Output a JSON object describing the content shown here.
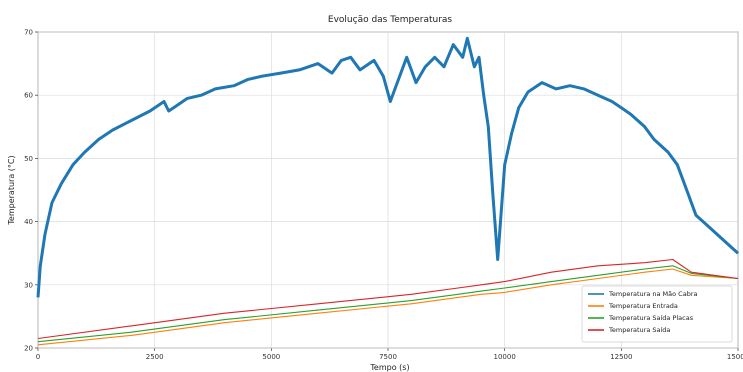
{
  "chart_data": {
    "type": "line",
    "title": "Evolução das Temperaturas",
    "xlabel": "Tempo (s)",
    "ylabel": "Temperatura (°C)",
    "xlim": [
      0,
      15000
    ],
    "ylim": [
      20,
      70
    ],
    "xticks": [
      0,
      2500,
      5000,
      7500,
      10000,
      12500,
      15000
    ],
    "yticks": [
      20,
      30,
      40,
      50,
      60,
      70
    ],
    "grid": true,
    "legend_position": "bottom-right",
    "series": [
      {
        "name": "Temperatura na Mão Cabra",
        "color": "#1f77b4",
        "x": [
          0,
          50,
          150,
          300,
          500,
          750,
          1000,
          1300,
          1600,
          2000,
          2400,
          2600,
          2700,
          2800,
          3000,
          3200,
          3500,
          3800,
          4200,
          4500,
          4800,
          5200,
          5600,
          6000,
          6300,
          6500,
          6700,
          6900,
          7200,
          7400,
          7550,
          7700,
          7900,
          8100,
          8300,
          8500,
          8700,
          8900,
          9100,
          9200,
          9350,
          9450,
          9550,
          9650,
          9750,
          9850,
          10000,
          10150,
          10300,
          10500,
          10800,
          11100,
          11400,
          11700,
          12000,
          12300,
          12500,
          12700,
          13000,
          13200,
          13500,
          13700,
          13900,
          14100,
          14400,
          14700,
          15000
        ],
        "y": [
          28,
          33,
          38,
          43,
          46,
          49,
          51,
          53,
          54.5,
          56,
          57.5,
          58.5,
          59,
          57.5,
          58.5,
          59.5,
          60,
          61,
          61.5,
          62.5,
          63,
          63.5,
          64,
          65,
          63.5,
          65.5,
          66,
          64,
          65.5,
          63,
          59,
          62,
          66,
          62,
          64.5,
          66,
          64.5,
          68,
          66,
          69,
          64.5,
          66,
          60,
          55,
          44,
          34,
          49,
          54,
          58,
          60.5,
          62,
          61,
          61.5,
          61,
          60,
          59,
          58,
          57,
          55,
          53,
          51,
          49,
          45,
          41,
          39,
          37,
          35
        ]
      },
      {
        "name": "Temperatura Entrada",
        "color": "#ff7f0e",
        "x": [
          0,
          2000,
          4000,
          6000,
          8000,
          9000,
          9500,
          10000,
          11000,
          12000,
          13000,
          13600,
          14000,
          15000
        ],
        "y": [
          20.5,
          22,
          24,
          25.5,
          27,
          28,
          28.5,
          28.8,
          30,
          31,
          32,
          32.5,
          31.5,
          31
        ]
      },
      {
        "name": "Temperatura Saída Placas",
        "color": "#2ca02c",
        "x": [
          0,
          2000,
          4000,
          6000,
          8000,
          9000,
          9500,
          10000,
          11000,
          12000,
          13000,
          13600,
          14000,
          15000
        ],
        "y": [
          21,
          22.5,
          24.5,
          26,
          27.5,
          28.5,
          29,
          29.5,
          30.5,
          31.5,
          32.5,
          33,
          31.8,
          31
        ]
      },
      {
        "name": "Temperatura Saída",
        "color": "#d62728",
        "x": [
          0,
          2000,
          4000,
          6000,
          8000,
          9000,
          9500,
          10000,
          11000,
          12000,
          13000,
          13600,
          14000,
          15000
        ],
        "y": [
          21.5,
          23.5,
          25.5,
          27,
          28.5,
          29.5,
          30,
          30.5,
          32,
          33,
          33.5,
          34,
          32,
          31
        ]
      }
    ]
  }
}
